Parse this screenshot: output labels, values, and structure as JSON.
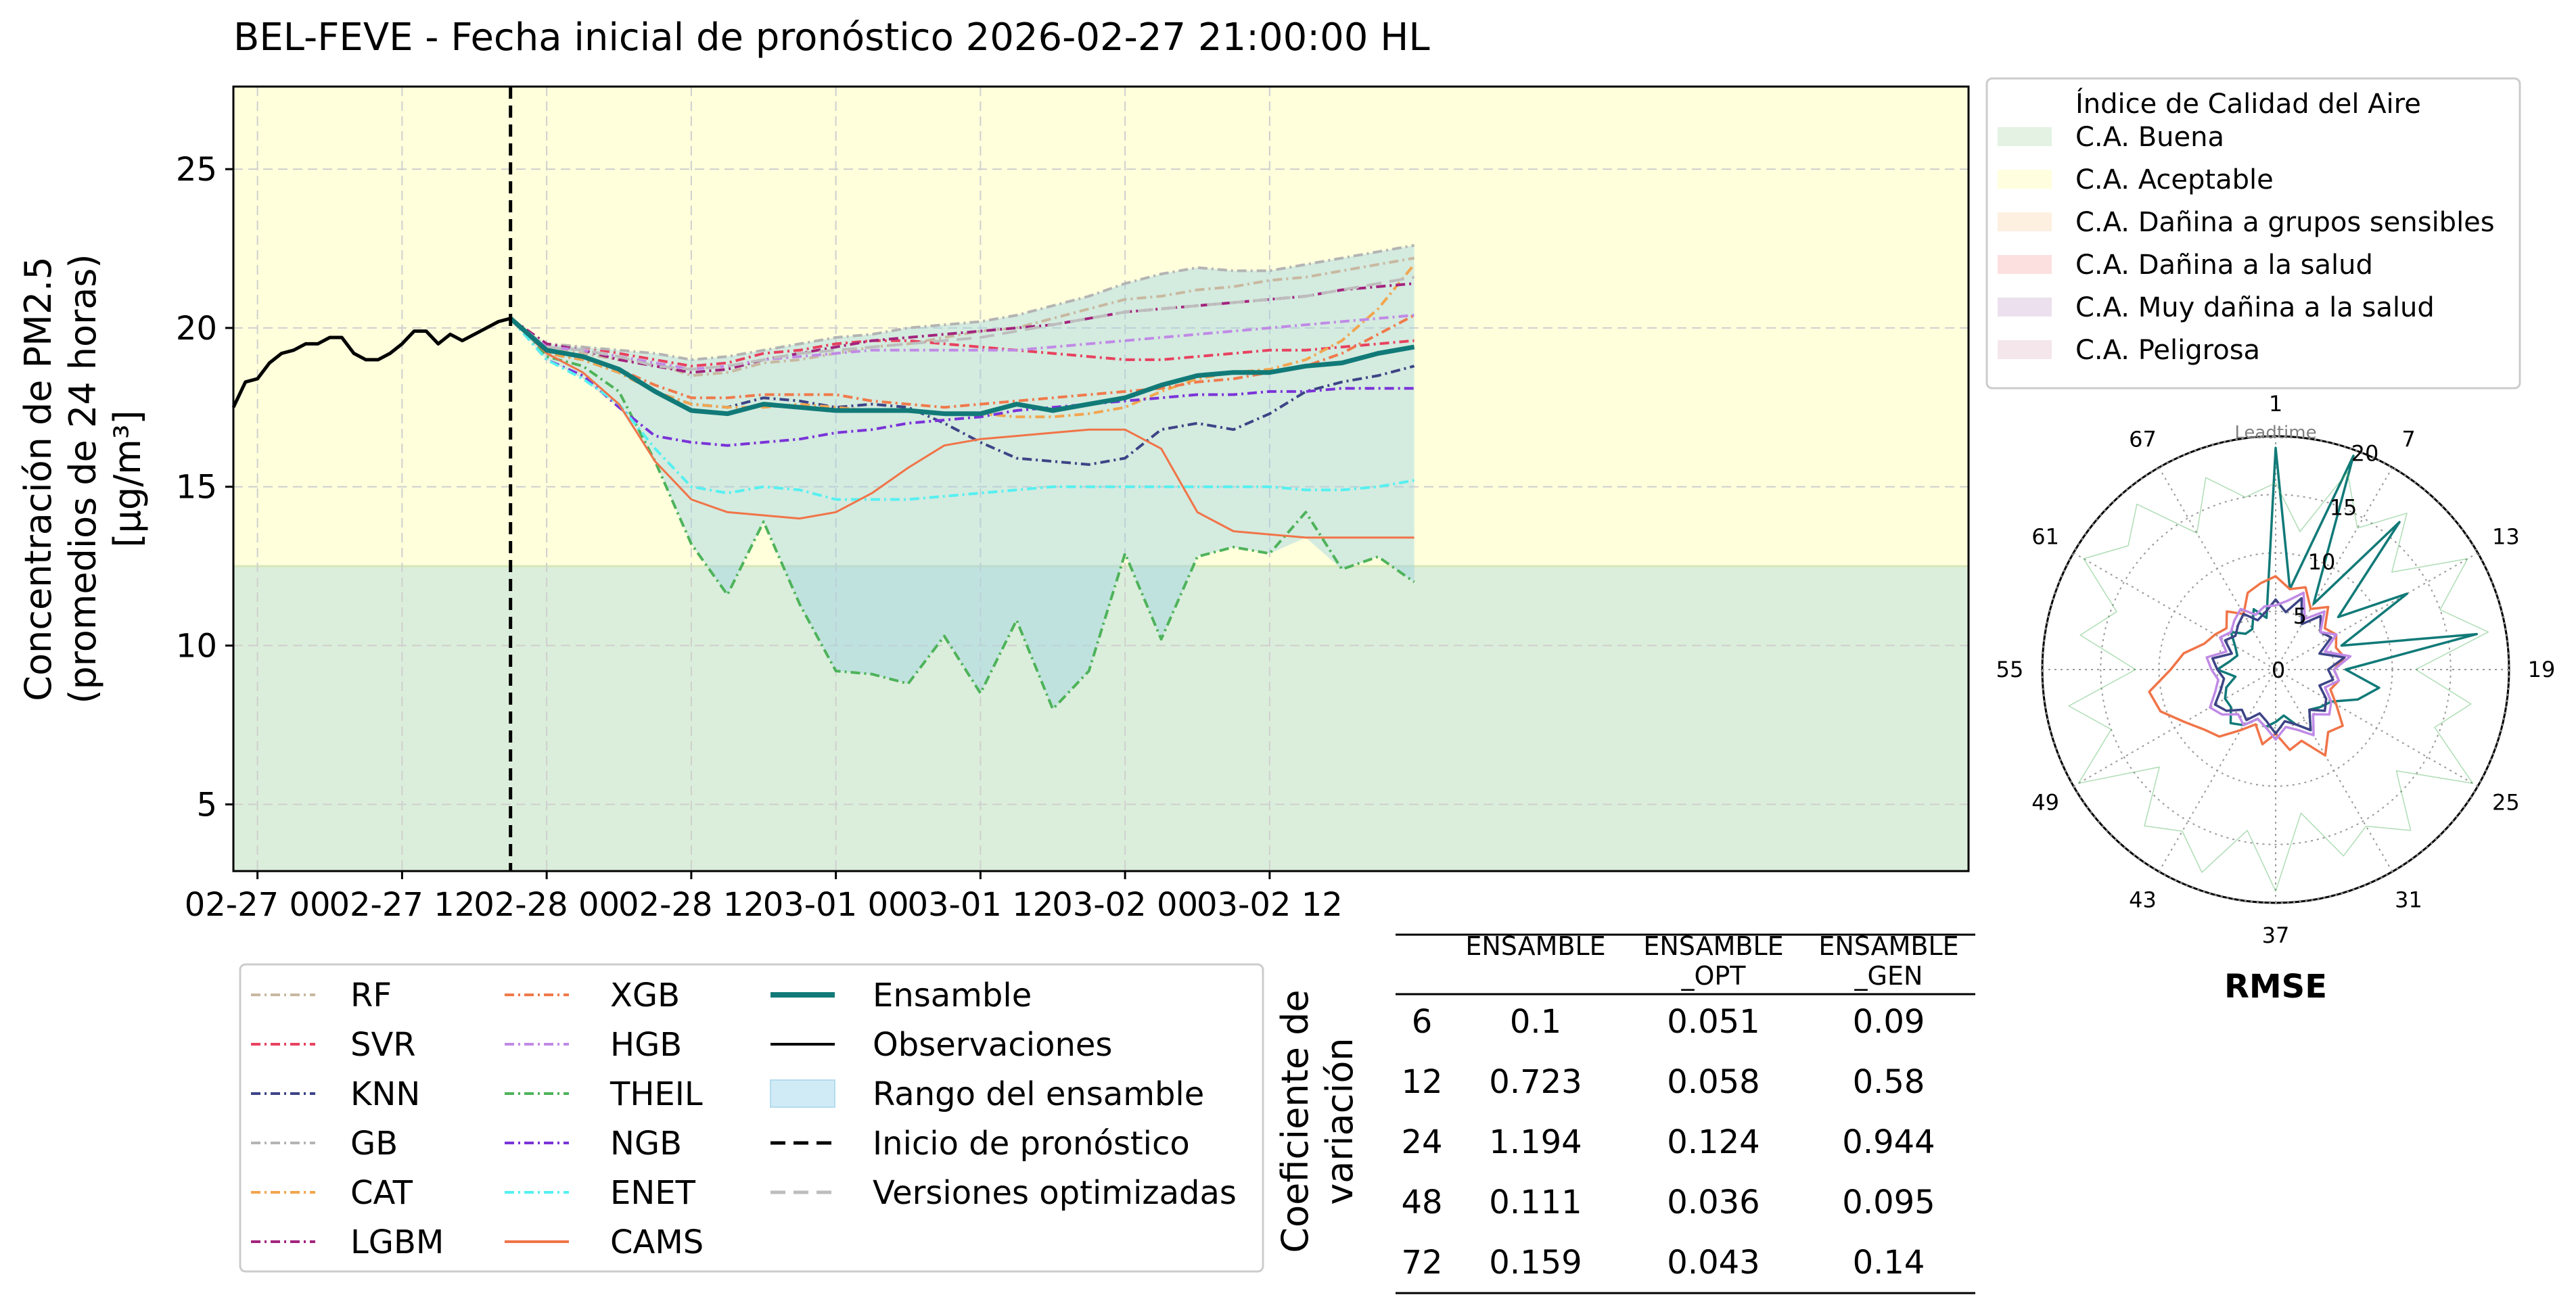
{
  "title": "BEL-FEVE - Fecha inicial de pronóstico 2026-02-27 21:00:00 HL",
  "colors": {
    "aqi_good": "#dbeedb",
    "aqi_acceptable": "#ffffdc",
    "ensemble": "#117a78",
    "observations": "#000000",
    "ensemble_range": "#a8d8ea",
    "forecast_start": "#000000"
  },
  "chart_data": [
    {
      "type": "line",
      "title": "BEL-FEVE - Fecha inicial de pronóstico 2026-02-27 21:00:00 HL",
      "ylabel": [
        "Concentración de PM2.5",
        "(promedios de 24 horas)",
        "[μg/m³]"
      ],
      "xlabel": "",
      "x_unit": "hours since 2026-02-27 00:00",
      "xlim": [
        -2,
        142
      ],
      "ylim": [
        2.9,
        27.6
      ],
      "x_tick_labels": [
        {
          "x": 0,
          "label": "02-27 00"
        },
        {
          "x": 12,
          "label": "02-27 12"
        },
        {
          "x": 24,
          "label": "02-28 00"
        },
        {
          "x": 36,
          "label": "02-28 12"
        },
        {
          "x": 48,
          "label": "03-01 00"
        },
        {
          "x": 60,
          "label": "03-01 12"
        },
        {
          "x": 72,
          "label": "03-02 00"
        },
        {
          "x": 84,
          "label": "03-02 12"
        }
      ],
      "y_ticks": [
        5,
        10,
        15,
        20,
        25
      ],
      "grid": true,
      "forecast_start_x": 21,
      "aqi_bands": [
        {
          "label": "C.A. Buena",
          "ymin": 0,
          "ymax": 12.5,
          "color": "#dbeedb"
        },
        {
          "label": "C.A. Aceptable",
          "ymin": 12.5,
          "ymax": 37.5,
          "color": "#ffffdc"
        }
      ],
      "observations": {
        "name": "Observaciones",
        "x": [
          -2,
          -1,
          0,
          1,
          2,
          3,
          4,
          5,
          6,
          7,
          8,
          9,
          10,
          11,
          12,
          13,
          14,
          15,
          16,
          17,
          18,
          19,
          20,
          21
        ],
        "y": [
          17.5,
          18.3,
          18.4,
          18.9,
          19.2,
          19.3,
          19.5,
          19.5,
          19.7,
          19.7,
          19.2,
          19.0,
          19.0,
          19.2,
          19.5,
          19.9,
          19.9,
          19.5,
          19.8,
          19.6,
          19.8,
          20.0,
          20.2,
          20.3
        ]
      },
      "forecast_x": [
        21,
        24,
        27,
        30,
        33,
        36,
        39,
        42,
        45,
        48,
        51,
        54,
        57,
        60,
        63,
        66,
        69,
        72,
        75,
        78,
        81,
        84,
        87,
        90,
        93,
        96
      ],
      "series": [
        {
          "name": "RF",
          "color": "#c8b8a0",
          "dash": "14,6,3,6",
          "width": 4,
          "values": [
            20.3,
            19.4,
            19.2,
            19.0,
            18.9,
            18.5,
            18.6,
            18.9,
            19.0,
            19.2,
            19.4,
            19.5,
            19.7,
            19.9,
            20.0,
            20.3,
            20.6,
            20.9,
            21.0,
            21.2,
            21.3,
            21.5,
            21.6,
            21.8,
            22.0,
            22.2
          ]
        },
        {
          "name": "SVR",
          "color": "#e8415f",
          "dash": "14,6,3,6",
          "width": 4,
          "values": [
            20.3,
            19.5,
            19.4,
            19.2,
            19.0,
            18.8,
            18.9,
            19.2,
            19.3,
            19.5,
            19.6,
            19.6,
            19.5,
            19.4,
            19.3,
            19.2,
            19.1,
            19.0,
            19.0,
            19.1,
            19.2,
            19.3,
            19.3,
            19.4,
            19.5,
            19.6
          ]
        },
        {
          "name": "KNN",
          "color": "#3d4486",
          "dash": "14,6,3,6",
          "width": 4,
          "values": [
            20.3,
            19.2,
            19.0,
            18.6,
            18.0,
            17.6,
            17.5,
            17.8,
            17.7,
            17.5,
            17.6,
            17.5,
            17.0,
            16.4,
            15.9,
            15.8,
            15.7,
            15.9,
            16.8,
            17.0,
            16.8,
            17.3,
            18.0,
            18.3,
            18.5,
            18.8
          ]
        },
        {
          "name": "GB",
          "color": "#b4b4b4",
          "dash": "14,6,3,6",
          "width": 4,
          "values": [
            20.3,
            19.5,
            19.4,
            19.3,
            19.2,
            19.0,
            19.1,
            19.3,
            19.5,
            19.7,
            19.8,
            20.0,
            20.1,
            20.2,
            20.4,
            20.7,
            21.0,
            21.4,
            21.7,
            21.9,
            21.8,
            21.8,
            22.0,
            22.2,
            22.4,
            22.6
          ]
        },
        {
          "name": "CAT",
          "color": "#f2a54e",
          "dash": "14,6,3,6",
          "width": 4,
          "values": [
            20.3,
            19.2,
            19.0,
            18.6,
            18.0,
            17.6,
            17.5,
            17.5,
            17.6,
            17.5,
            17.4,
            17.4,
            17.3,
            17.3,
            17.2,
            17.2,
            17.3,
            17.5,
            18.0,
            18.4,
            18.6,
            18.7,
            19.0,
            19.6,
            20.6,
            22.0
          ]
        },
        {
          "name": "LGBM",
          "color": "#a3247e",
          "dash": "14,6,3,6",
          "width": 4,
          "values": [
            20.3,
            19.5,
            19.3,
            19.0,
            18.8,
            18.6,
            18.7,
            19.0,
            19.2,
            19.4,
            19.6,
            19.7,
            19.8,
            19.9,
            20.0,
            20.1,
            20.3,
            20.5,
            20.6,
            20.7,
            20.8,
            20.9,
            21.0,
            21.2,
            21.3,
            21.4
          ]
        },
        {
          "name": "XGB",
          "color": "#f0794a",
          "dash": "14,6,3,6",
          "width": 4,
          "values": [
            20.3,
            19.3,
            19.1,
            18.7,
            18.2,
            17.8,
            17.8,
            17.9,
            17.9,
            17.9,
            17.7,
            17.6,
            17.5,
            17.6,
            17.7,
            17.8,
            17.9,
            18.0,
            18.1,
            18.3,
            18.4,
            18.6,
            18.8,
            19.2,
            19.8,
            20.4
          ]
        },
        {
          "name": "HGB",
          "color": "#c08ae6",
          "dash": "14,6,3,6",
          "width": 4,
          "values": [
            20.3,
            19.4,
            19.3,
            19.1,
            18.9,
            18.7,
            18.8,
            19.0,
            19.1,
            19.2,
            19.3,
            19.3,
            19.3,
            19.3,
            19.3,
            19.4,
            19.5,
            19.6,
            19.7,
            19.8,
            19.9,
            20.0,
            20.1,
            20.2,
            20.3,
            20.4
          ]
        },
        {
          "name": "THEIL",
          "color": "#4eb35a",
          "dash": "14,6,3,6",
          "width": 4,
          "values": [
            20.3,
            19.1,
            18.8,
            18.0,
            15.8,
            13.2,
            11.6,
            13.9,
            11.3,
            9.2,
            9.1,
            8.8,
            10.3,
            8.5,
            10.8,
            8.0,
            9.2,
            12.9,
            10.2,
            12.8,
            13.1,
            12.9,
            14.2,
            12.4,
            12.8,
            12.0
          ]
        },
        {
          "name": "NGB",
          "color": "#7a33d8",
          "dash": "14,6,3,6",
          "width": 4,
          "values": [
            20.3,
            19.0,
            18.5,
            17.5,
            16.6,
            16.4,
            16.3,
            16.4,
            16.5,
            16.7,
            16.8,
            17.0,
            17.1,
            17.2,
            17.4,
            17.5,
            17.6,
            17.7,
            17.8,
            17.9,
            17.9,
            18.0,
            18.0,
            18.1,
            18.1,
            18.1
          ]
        },
        {
          "name": "ENET",
          "color": "#55f0f0",
          "dash": "14,6,3,6",
          "width": 4,
          "values": [
            20.3,
            19.0,
            18.4,
            17.6,
            16.2,
            15.0,
            14.8,
            15.0,
            14.9,
            14.6,
            14.6,
            14.6,
            14.7,
            14.8,
            14.9,
            15.0,
            15.0,
            15.0,
            15.0,
            15.0,
            15.0,
            15.0,
            14.9,
            14.9,
            15.0,
            15.2
          ]
        },
        {
          "name": "CAMS",
          "color": "#f07448",
          "dash": "",
          "width": 3,
          "values": [
            20.3,
            19.2,
            18.6,
            17.6,
            15.8,
            14.6,
            14.2,
            14.1,
            14.0,
            14.2,
            14.8,
            15.6,
            16.3,
            16.5,
            16.6,
            16.7,
            16.8,
            16.8,
            16.2,
            14.2,
            13.6,
            13.5,
            13.4,
            13.4,
            13.4,
            13.4
          ]
        },
        {
          "name": "Ensamble",
          "color": "#117a78",
          "dash": "",
          "width": 7,
          "values": [
            20.3,
            19.3,
            19.1,
            18.7,
            18.0,
            17.4,
            17.3,
            17.6,
            17.5,
            17.4,
            17.4,
            17.4,
            17.3,
            17.3,
            17.6,
            17.4,
            17.6,
            17.8,
            18.2,
            18.5,
            18.6,
            18.6,
            18.8,
            18.9,
            19.2,
            19.4
          ]
        },
        {
          "name": "Versiones optimizadas",
          "color": "#bdbdbd",
          "dash": "22,12",
          "width": 4,
          "values": [
            20.3,
            19.4,
            19.3,
            19.1,
            18.8,
            18.7,
            18.8,
            19.0,
            19.2,
            19.3,
            19.4,
            19.5,
            19.6,
            19.7,
            19.9,
            20.1,
            20.3,
            20.5,
            20.6,
            20.7,
            20.8,
            20.9,
            21.0,
            21.2,
            21.4,
            21.6
          ]
        }
      ]
    },
    {
      "type": "radar",
      "title": "RMSE",
      "axis_title": "Leadtime",
      "angle_labels": [
        "1",
        "7",
        "13",
        "19",
        "25",
        "31",
        "37",
        "43",
        "49",
        "55",
        "61",
        "67"
      ],
      "r_ticks": [
        0,
        5,
        10,
        15,
        20
      ],
      "rlim": [
        0,
        20
      ],
      "series": [
        {
          "name": "Ensamble",
          "color": "#117a78",
          "values": [
            19.0,
            7.0,
            19.5,
            6.5,
            16.5,
            7.0,
            13.0,
            6.0,
            17.5,
            6.0,
            9.0,
            7.5,
            5.5,
            5.0,
            4.5,
            6.0,
            5.0,
            4.0,
            4.5,
            5.0,
            4.5,
            5.5,
            6.0,
            5.0,
            5.0,
            4.5,
            3.5,
            5.0,
            4.0,
            3.5,
            4.0,
            5.0,
            4.0,
            4.0,
            5.5,
            4.5
          ]
        },
        {
          "name": "CAMS",
          "color": "#f07448",
          "values": [
            8.0,
            7.0,
            7.5,
            6.0,
            7.0,
            5.5,
            6.0,
            5.5,
            6.0,
            5.0,
            5.5,
            5.0,
            6.0,
            7.5,
            7.0,
            8.5,
            6.5,
            7.0,
            5.5,
            6.5,
            5.0,
            6.0,
            7.5,
            8.0,
            9.0,
            10.5,
            11.0,
            9.0,
            8.0,
            6.5,
            6.0,
            5.5,
            6.5,
            5.5,
            7.0,
            7.5
          ]
        },
        {
          "name": "KNN",
          "color": "#3d4486",
          "values": [
            6.0,
            5.0,
            6.5,
            4.5,
            6.0,
            5.0,
            5.5,
            4.0,
            6.0,
            4.5,
            5.0,
            4.0,
            5.0,
            5.5,
            4.5,
            6.0,
            5.0,
            4.5,
            5.5,
            4.5,
            4.0,
            5.0,
            4.5,
            5.5,
            6.0,
            5.0,
            4.5,
            5.0,
            5.5,
            4.0,
            5.0,
            4.5,
            5.0,
            5.5,
            4.5,
            5.0
          ]
        },
        {
          "name": "HGB",
          "color": "#c08ae6",
          "values": [
            5.5,
            6.0,
            7.0,
            5.0,
            6.5,
            5.0,
            6.0,
            4.5,
            6.5,
            5.0,
            5.5,
            4.5,
            5.5,
            6.0,
            5.0,
            6.5,
            5.5,
            5.0,
            6.0,
            5.0,
            4.5,
            5.5,
            5.0,
            6.0,
            6.5,
            5.5,
            5.0,
            5.5,
            6.0,
            4.5,
            5.5,
            5.0,
            5.5,
            6.0,
            5.0,
            5.5
          ]
        },
        {
          "name": "THEIL",
          "color": "#4eb35a",
          "values": [
            16.0,
            12.0,
            18.0,
            14.0,
            17.5,
            13.0,
            19.0,
            15.0,
            18.5,
            12.0,
            17.0,
            14.5,
            19.5,
            13.5,
            18.0,
            15.5,
            17.0,
            12.5,
            19.0,
            14.0,
            18.5,
            16.0,
            17.5,
            13.0,
            19.5,
            15.0,
            18.0,
            12.0,
            17.0,
            14.5,
            19.0,
            16.5,
            18.5,
            13.5,
            17.5,
            15.0
          ]
        }
      ]
    }
  ],
  "aqi_legend": {
    "title": "Índice de Calidad del Aire",
    "items": [
      {
        "label": "C.A. Buena",
        "color": "#e3f2e3"
      },
      {
        "label": "C.A. Aceptable",
        "color": "#ffffe0"
      },
      {
        "label": "C.A. Dañina a grupos sensibles",
        "color": "#fdf0e0"
      },
      {
        "label": "C.A. Dañina a la salud",
        "color": "#fce0e0"
      },
      {
        "label": "C.A. Muy dañina a la salud",
        "color": "#ece0ee"
      },
      {
        "label": "C.A. Peligrosa",
        "color": "#f4e6ea"
      }
    ]
  },
  "model_legend": {
    "col1": [
      {
        "label": "RF",
        "color": "#c8b8a0",
        "style": "dashdot"
      },
      {
        "label": "SVR",
        "color": "#e8415f",
        "style": "dashdot"
      },
      {
        "label": "KNN",
        "color": "#3d4486",
        "style": "dashdot"
      },
      {
        "label": "GB",
        "color": "#b4b4b4",
        "style": "dashdot"
      },
      {
        "label": "CAT",
        "color": "#f2a54e",
        "style": "dashdot"
      },
      {
        "label": "LGBM",
        "color": "#a3247e",
        "style": "dashdot"
      }
    ],
    "col2": [
      {
        "label": "XGB",
        "color": "#f0794a",
        "style": "dashdot"
      },
      {
        "label": "HGB",
        "color": "#c08ae6",
        "style": "dashdot"
      },
      {
        "label": "THEIL",
        "color": "#4eb35a",
        "style": "dashdot"
      },
      {
        "label": "NGB",
        "color": "#7a33d8",
        "style": "dashdot"
      },
      {
        "label": "ENET",
        "color": "#55f0f0",
        "style": "dashdot"
      },
      {
        "label": "CAMS",
        "color": "#f07448",
        "style": "solid"
      }
    ],
    "col3": [
      {
        "label": "Ensamble",
        "color": "#117a78",
        "style": "thick"
      },
      {
        "label": "Observaciones",
        "color": "#000000",
        "style": "solid"
      },
      {
        "label": "Rango del ensamble",
        "color": "#d0ebf5",
        "style": "patch"
      },
      {
        "label": "Inicio de pronóstico",
        "color": "#000000",
        "style": "dashed"
      },
      {
        "label": "Versiones optimizadas",
        "color": "#bdbdbd",
        "style": "dashedlight"
      }
    ]
  },
  "cv_table": {
    "row_title": [
      "Coeficiente de",
      "variación"
    ],
    "headers": [
      [
        "ENSAMBLE"
      ],
      [
        "ENSAMBLE",
        "_OPT"
      ],
      [
        "ENSAMBLE",
        "_GEN"
      ]
    ],
    "rows": [
      {
        "label": "6",
        "values": [
          "0.1",
          "0.051",
          "0.09"
        ]
      },
      {
        "label": "12",
        "values": [
          "0.723",
          "0.058",
          "0.58"
        ]
      },
      {
        "label": "24",
        "values": [
          "1.194",
          "0.124",
          "0.944"
        ]
      },
      {
        "label": "48",
        "values": [
          "0.111",
          "0.036",
          "0.095"
        ]
      },
      {
        "label": "72",
        "values": [
          "0.159",
          "0.043",
          "0.14"
        ]
      }
    ]
  }
}
